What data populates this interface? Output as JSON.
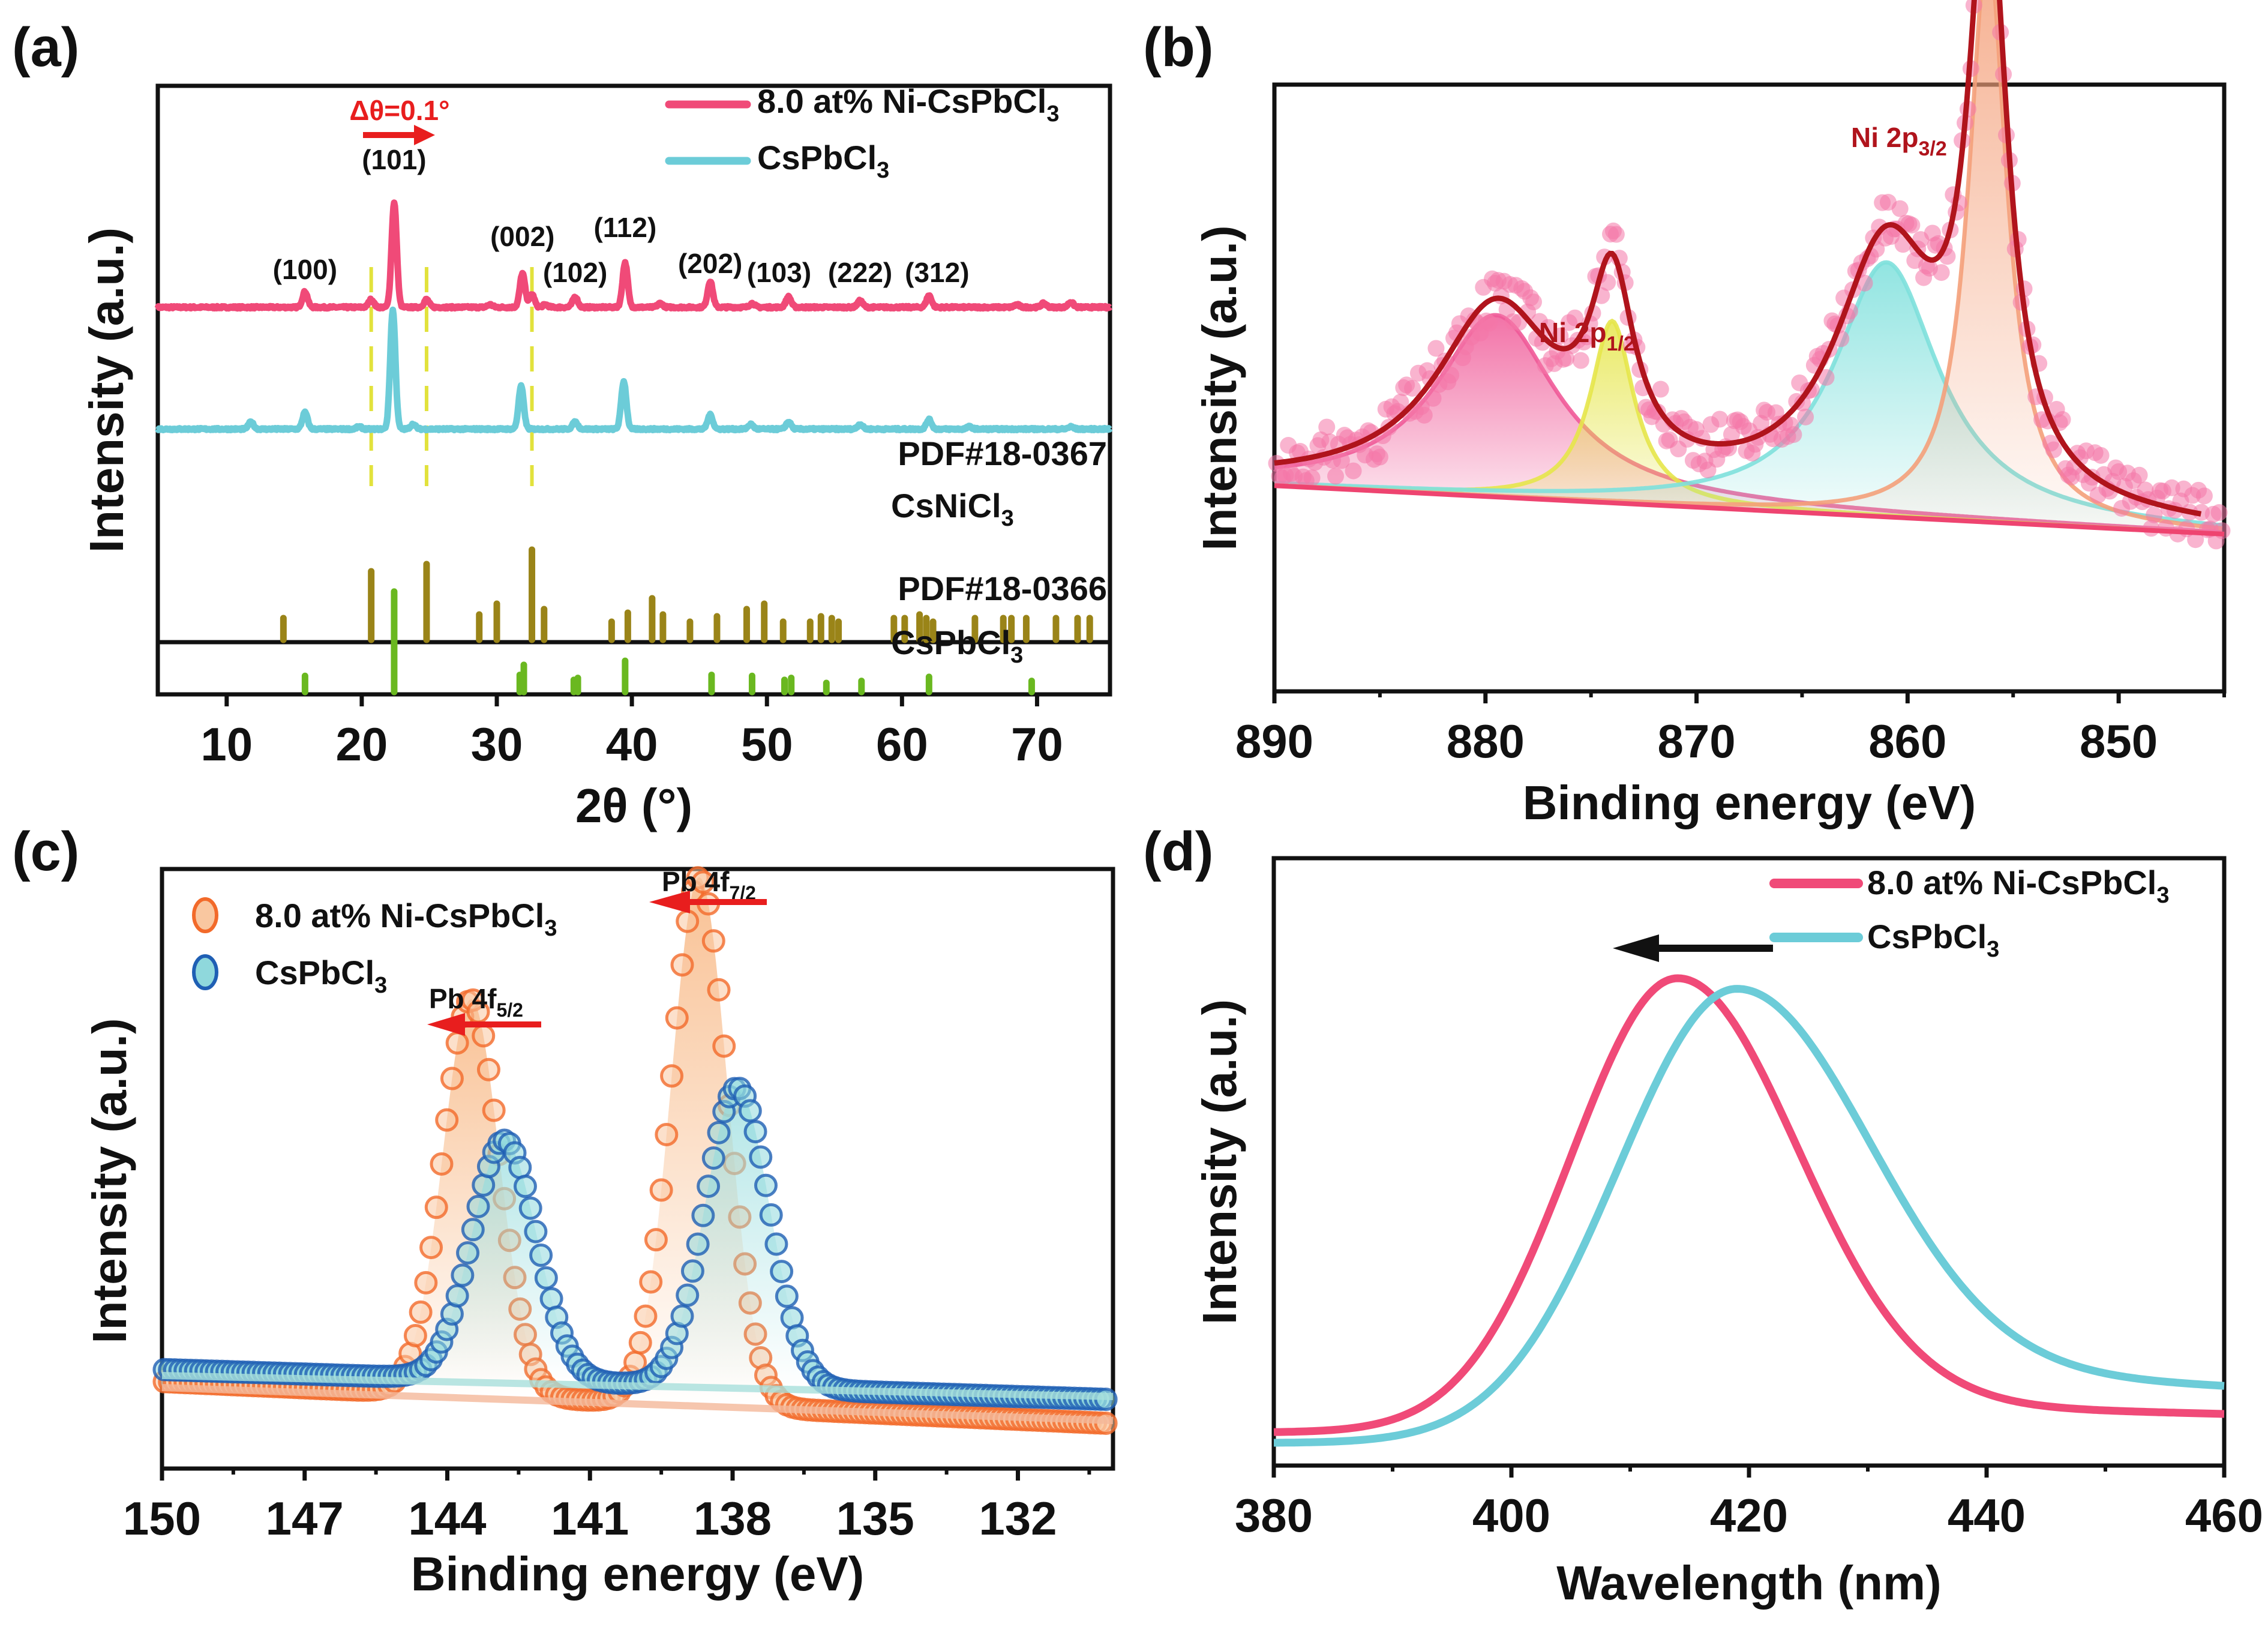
{
  "figure": {
    "panels": [
      "(a)",
      "(b)",
      "(c)",
      "(d)"
    ],
    "colors": {
      "ni_doped": "#f04a78",
      "pristine": "#6cccd8",
      "csnicl3_ref": "#9a8418",
      "cspbcl3_ref": "#6ab820",
      "dashed_guides": "#e2e23c",
      "arrow_red": "#e81e1e",
      "fit_envelope": "#b0141c",
      "orange_markers": "#f26a2a",
      "blue_markers": "#1f5fb4"
    }
  },
  "chart_data": [
    {
      "panel": "(a)",
      "type": "line",
      "xlabel": "2θ (°)",
      "ylabel": "Intensity (a.u.)",
      "xlim": [
        4.9,
        75.4
      ],
      "xticks": [
        10,
        20,
        30,
        40,
        50,
        60,
        70
      ],
      "legend": {
        "placement": "top-right",
        "entries": [
          "8.0 at% Ni-CsPbCl3",
          "CsPbCl3"
        ]
      },
      "annotation_shift": "Δθ=0.1°",
      "peak_labels": [
        {
          "text": "(100)",
          "x": 15.8
        },
        {
          "text": "(101)",
          "x": 22.4
        },
        {
          "text": "(002)",
          "x": 31.9
        },
        {
          "text": "(102)",
          "x": 35.8
        },
        {
          "text": "(112)",
          "x": 39.5
        },
        {
          "text": "(202)",
          "x": 45.8
        },
        {
          "text": "(103)",
          "x": 51.6
        },
        {
          "text": "(222)",
          "x": 56.9
        },
        {
          "text": "(312)",
          "x": 62.0
        }
      ],
      "guide_lines_x": [
        20.7,
        24.8,
        32.6
      ],
      "series": [
        {
          "name": "8.0 at% Ni-CsPbCl3",
          "baseline": 0.72,
          "peaks": [
            [
              15.8,
              0.06
            ],
            [
              20.7,
              0.03
            ],
            [
              22.4,
              0.4
            ],
            [
              24.8,
              0.03
            ],
            [
              29.5,
              0.01
            ],
            [
              31.9,
              0.13
            ],
            [
              32.6,
              0.05
            ],
            [
              33.6,
              0.01
            ],
            [
              35.8,
              0.04
            ],
            [
              39.5,
              0.17
            ],
            [
              42.1,
              0.015
            ],
            [
              45.8,
              0.1
            ],
            [
              48.9,
              0.015
            ],
            [
              51.6,
              0.04
            ],
            [
              56.9,
              0.025
            ],
            [
              62.0,
              0.045
            ],
            [
              68.5,
              0.01
            ],
            [
              70.5,
              0.015
            ],
            [
              72.5,
              0.02
            ]
          ]
        },
        {
          "name": "CsPbCl3",
          "baseline": 0.5,
          "peaks": [
            [
              11.8,
              0.03
            ],
            [
              15.8,
              0.07
            ],
            [
              19.8,
              0.01
            ],
            [
              22.3,
              0.5
            ],
            [
              23.8,
              0.02
            ],
            [
              31.8,
              0.18
            ],
            [
              35.8,
              0.03
            ],
            [
              39.4,
              0.2
            ],
            [
              45.8,
              0.06
            ],
            [
              48.8,
              0.02
            ],
            [
              51.6,
              0.03
            ],
            [
              56.9,
              0.02
            ],
            [
              62.0,
              0.04
            ],
            [
              65,
              0.01
            ],
            [
              72.5,
              0.01
            ]
          ]
        }
      ],
      "references": [
        {
          "label_lines": [
            "PDF#18-0367",
            "CsNiCl3"
          ],
          "sticks": [
            [
              14.2,
              0.12
            ],
            [
              20.7,
              0.38
            ],
            [
              24.8,
              0.42
            ],
            [
              28.7,
              0.14
            ],
            [
              30.0,
              0.2
            ],
            [
              32.6,
              0.5
            ],
            [
              33.5,
              0.17
            ],
            [
              38.5,
              0.1
            ],
            [
              39.7,
              0.15
            ],
            [
              41.5,
              0.23
            ],
            [
              42.3,
              0.14
            ],
            [
              44.3,
              0.1
            ],
            [
              46.3,
              0.13
            ],
            [
              48.5,
              0.17
            ],
            [
              49.8,
              0.2
            ],
            [
              51.2,
              0.1
            ],
            [
              53.2,
              0.1
            ],
            [
              54.0,
              0.13
            ],
            [
              54.8,
              0.12
            ],
            [
              55.3,
              0.1
            ],
            [
              59.4,
              0.12
            ],
            [
              60.2,
              0.12
            ],
            [
              61.3,
              0.14
            ],
            [
              61.8,
              0.12
            ],
            [
              62.3,
              0.1
            ],
            [
              65.4,
              0.12
            ],
            [
              67.5,
              0.12
            ],
            [
              68.1,
              0.12
            ],
            [
              69.2,
              0.12
            ],
            [
              71.4,
              0.12
            ],
            [
              73.0,
              0.12
            ],
            [
              73.9,
              0.12
            ]
          ],
          "label_sub": "3"
        },
        {
          "label_lines": [
            "PDF#18-0366",
            "CsPbCl3"
          ],
          "sticks": [
            [
              15.8,
              0.16
            ],
            [
              22.4,
              1.0
            ],
            [
              31.7,
              0.17
            ],
            [
              32.0,
              0.27
            ],
            [
              35.7,
              0.12
            ],
            [
              36.0,
              0.14
            ],
            [
              39.5,
              0.31
            ],
            [
              45.9,
              0.17
            ],
            [
              48.9,
              0.16
            ],
            [
              51.3,
              0.12
            ],
            [
              51.8,
              0.14
            ],
            [
              54.4,
              0.09
            ],
            [
              57.0,
              0.11
            ],
            [
              62.0,
              0.15
            ],
            [
              69.6,
              0.11
            ]
          ],
          "label_sub": "3"
        }
      ]
    },
    {
      "panel": "(b)",
      "type": "scatter",
      "xlabel": "Binding energy (eV)",
      "ylabel": "Intensity (a.u.)",
      "xlim": [
        890,
        845
      ],
      "xticks": [
        890,
        880,
        870,
        860,
        850
      ],
      "annotations": [
        {
          "text": "Ni 2p",
          "sub": "1/2",
          "x": 874
        },
        {
          "text": "Ni 2p",
          "sub": "3/2",
          "x": 856
        }
      ],
      "components": [
        {
          "name": "satellite-1",
          "center": 879.5,
          "height": 0.3,
          "fwhm": 7.0,
          "color": "#f05a98"
        },
        {
          "name": "Ni 2p1/2",
          "center": 874.0,
          "height": 0.3,
          "fwhm": 2.5,
          "color": "#e6e64a"
        },
        {
          "name": "satellite-2",
          "center": 861.0,
          "height": 0.42,
          "fwhm": 6.0,
          "color": "#7ee0dc"
        },
        {
          "name": "Ni 2p3/2",
          "center": 856.2,
          "height": 0.95,
          "fwhm": 2.2,
          "color": "#f4a07a"
        }
      ],
      "background": {
        "start": 0.28,
        "end": 0.2
      }
    },
    {
      "panel": "(c)",
      "type": "scatter",
      "xlabel": "Binding energy (eV)",
      "ylabel": "Intensity (a.u.)",
      "xlim": [
        150,
        130
      ],
      "xticks": [
        150,
        147,
        144,
        141,
        138,
        135,
        132
      ],
      "legend": {
        "placement": "top-left",
        "entries": [
          "8.0 at% Ni-CsPbCl3",
          "CsPbCl3"
        ]
      },
      "annotations": [
        {
          "text": "Pb 4f",
          "sub": "5/2"
        },
        {
          "text": "Pb 4f",
          "sub": "7/2"
        }
      ],
      "series": [
        {
          "name": "8.0 at% Ni-CsPbCl3",
          "peaks": [
            [
              143.5,
              0.66,
              1.4
            ],
            [
              138.7,
              0.88,
              1.4
            ]
          ],
          "baseline_left": 0.08,
          "baseline_right": 0.01
        },
        {
          "name": "CsPbCl3",
          "peaks": [
            [
              142.8,
              0.4,
              1.6
            ],
            [
              137.9,
              0.5,
              1.6
            ]
          ],
          "baseline_left": 0.1,
          "baseline_right": 0.05
        }
      ]
    },
    {
      "panel": "(d)",
      "type": "line",
      "xlabel": "Wavelength (nm)",
      "ylabel": "Intensity (a.u.)",
      "xlim": [
        380,
        460
      ],
      "xticks": [
        380,
        400,
        420,
        440,
        460
      ],
      "legend": {
        "placement": "top-right",
        "entries": [
          "8.0 at% Ni-CsPbCl3",
          "CsPbCl3"
        ]
      },
      "series": [
        {
          "name": "8.0 at% Ni-CsPbCl3",
          "peak_nm": 414,
          "sigma_left": 9.0,
          "sigma_right": 10.0,
          "peak": 0.9,
          "tail": 0.1,
          "base": 0.04
        },
        {
          "name": "CsPbCl3",
          "peak_nm": 419,
          "sigma_left": 10.0,
          "sigma_right": 11.0,
          "peak": 0.88,
          "tail": 0.17,
          "base": 0.02
        }
      ]
    }
  ]
}
